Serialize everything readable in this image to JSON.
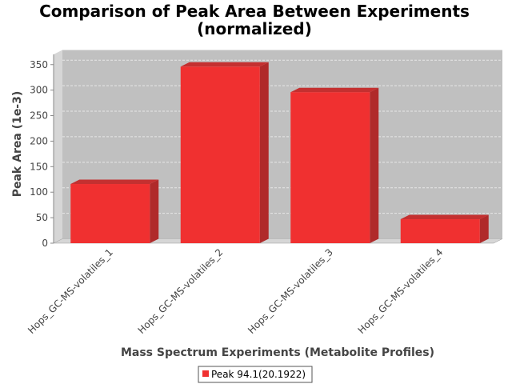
{
  "chart_data": {
    "type": "bar",
    "title_line1": "Comparison of Peak Area Between Experiments",
    "title_line2": "(normalized)",
    "xlabel": "Mass Spectrum Experiments (Metabolite Profiles)",
    "ylabel": "Peak Area (1e-3)",
    "categories": [
      "Hops_GC-MS-volatiles_1",
      "Hops_GC-MS-volatiles_2",
      "Hops_GC-MS-volatiles_3",
      "Hops_GC-MS-volatiles_4"
    ],
    "series": [
      {
        "name": "Peak 94.1(20.1922)",
        "values": [
          116,
          346,
          296,
          47
        ],
        "color": "#f03030"
      }
    ],
    "ylim": [
      0,
      370
    ],
    "yticks": [
      0,
      50,
      100,
      150,
      200,
      250,
      300,
      350
    ],
    "grid": true,
    "legend_position": "bottom-center",
    "colors": {
      "plot_background": "#c0c0c0",
      "grid": "#e8e8e8",
      "bar": "#f03030"
    }
  }
}
